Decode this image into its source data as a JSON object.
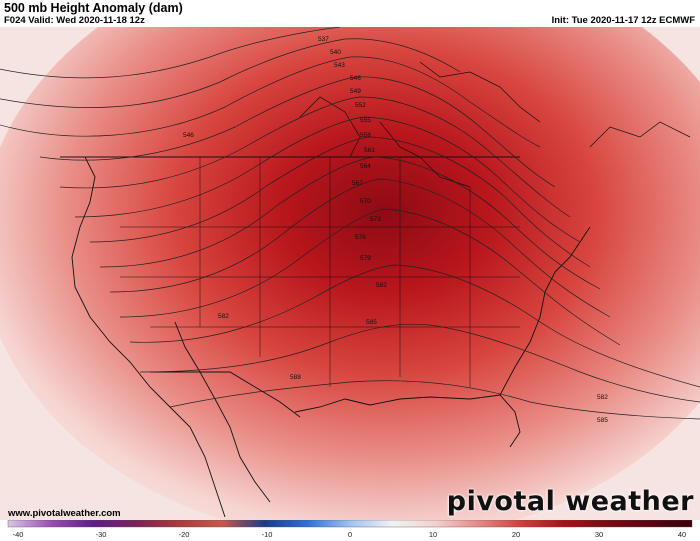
{
  "header": {
    "title": "500 mb Height Anomaly (dam)",
    "valid": "F024 Valid: Wed 2020-11-18 12z",
    "init": "Init: Tue 2020-11-17 12z ECMWF"
  },
  "contour_labels": [
    "537",
    "540",
    "543",
    "546",
    "549",
    "552",
    "555",
    "558",
    "561",
    "564",
    "567",
    "570",
    "573",
    "576",
    "579",
    "582",
    "585",
    "588",
    "546",
    "582",
    "582",
    "585"
  ],
  "footer": {
    "website": "www.pivotalweather.com",
    "brand": "pivotal weather"
  },
  "colorbar": {
    "ticks": [
      "-40",
      "-30",
      "-20",
      "-10",
      "0",
      "10",
      "20",
      "30",
      "40"
    ],
    "stops": [
      "#d8c6e8",
      "#9a4fb0",
      "#5e1d8a",
      "#7b2357",
      "#a83b3b",
      "#c9584a",
      "#1c3b8a",
      "#2f6fd6",
      "#9fc3f0",
      "#f2f2f2",
      "#f4cfcf",
      "#e58a86",
      "#cf3f3a",
      "#a31218",
      "#7a0a14",
      "#5a0410",
      "#3a020a"
    ]
  },
  "colors": {
    "ridge_core": "#a3101a",
    "ridge": "#d8423d",
    "trough_blue": "#2a5fc7",
    "trough_purple": "#6a1f9a"
  }
}
